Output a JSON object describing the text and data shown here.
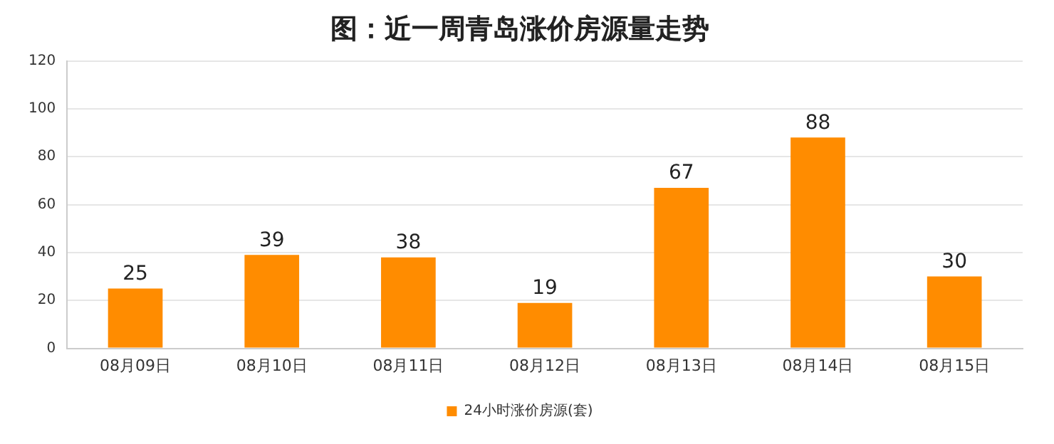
{
  "chart_data": {
    "type": "bar",
    "title": "图：近一周青岛涨价房源量走势",
    "categories": [
      "08月09日",
      "08月10日",
      "08月11日",
      "08月12日",
      "08月13日",
      "08月14日",
      "08月15日"
    ],
    "series": [
      {
        "name": "24小时涨价房源(套)",
        "color": "#ff8c00",
        "values": [
          25,
          39,
          38,
          19,
          67,
          88,
          30
        ]
      }
    ],
    "ylim": [
      0,
      120
    ],
    "yticks": [
      0,
      20,
      40,
      60,
      80,
      100,
      120
    ],
    "grid": "y",
    "legend": "bottom",
    "data_labels": true
  }
}
